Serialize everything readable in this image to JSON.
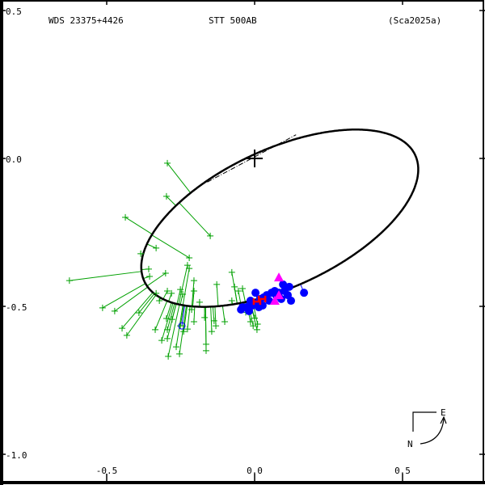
{
  "header": {
    "wds_id": "WDS 23375+4426",
    "pair_name": "STT 500AB",
    "orbit_ref": "(Sca2025a)"
  },
  "compass": {
    "north": "N",
    "east": "E"
  },
  "colors": {
    "orbit": "#000000",
    "micrometer": "#00a000",
    "speckle": "#0000ff",
    "interferometric": "#ff00ff",
    "recent": "#ff0000"
  },
  "chart_data": {
    "type": "scatter",
    "title": "WDS 23375+4426 STT 500AB (Sca2025a)",
    "xlabel": "",
    "ylabel": "",
    "xlim": [
      -0.86,
      0.78
    ],
    "ylim": [
      -1.1,
      0.535
    ],
    "x_ticks": [
      {
        "v": -0.5,
        "label": "-0.5"
      },
      {
        "v": 0.0,
        "label": "0.0"
      },
      {
        "v": 0.5,
        "label": "0.5"
      }
    ],
    "y_ticks": [
      {
        "v": 0.5,
        "label": "0.5"
      },
      {
        "v": 0.0,
        "label": "0.0"
      },
      {
        "v": -0.5,
        "label": "-0.5"
      },
      {
        "v": -1.0,
        "label": "-1.0"
      }
    ],
    "primary": [
      0,
      0
    ],
    "orbit_ellipse": {
      "center": [
        0.085,
        -0.202
      ],
      "semi_major": 0.505,
      "semi_minor": 0.232,
      "angle_deg": 25
    },
    "line_of_nodes": [
      [
        -0.16,
        -0.08
      ],
      [
        0.14,
        0.08
      ]
    ],
    "series": [
      {
        "name": "micrometer",
        "marker": "plus",
        "points": [
          [
            -0.295,
            -0.016
          ],
          [
            -0.298,
            -0.128
          ],
          [
            -0.437,
            -0.199
          ],
          [
            -0.15,
            -0.262
          ],
          [
            -0.333,
            -0.303
          ],
          [
            -0.385,
            -0.322
          ],
          [
            -0.221,
            -0.336
          ],
          [
            -0.227,
            -0.361
          ],
          [
            -0.221,
            -0.372
          ],
          [
            -0.358,
            -0.374
          ],
          [
            -0.626,
            -0.413
          ],
          [
            -0.301,
            -0.388
          ],
          [
            -0.355,
            -0.399
          ],
          [
            -0.077,
            -0.385
          ],
          [
            -0.205,
            -0.413
          ],
          [
            -0.128,
            -0.426
          ],
          [
            -0.514,
            -0.505
          ],
          [
            -0.473,
            -0.516
          ],
          [
            -0.448,
            -0.574
          ],
          [
            -0.432,
            -0.598
          ],
          [
            -0.391,
            -0.522
          ],
          [
            -0.336,
            -0.579
          ],
          [
            -0.314,
            -0.615
          ],
          [
            -0.295,
            -0.609
          ],
          [
            -0.295,
            -0.579
          ],
          [
            -0.298,
            -0.541
          ],
          [
            -0.279,
            -0.544
          ],
          [
            -0.251,
            -0.566
          ],
          [
            -0.24,
            -0.585
          ],
          [
            -0.265,
            -0.637
          ],
          [
            -0.292,
            -0.669
          ],
          [
            -0.254,
            -0.661
          ],
          [
            -0.295,
            -0.448
          ],
          [
            -0.281,
            -0.456
          ],
          [
            -0.251,
            -0.443
          ],
          [
            -0.243,
            -0.459
          ],
          [
            -0.205,
            -0.448
          ],
          [
            -0.186,
            -0.486
          ],
          [
            -0.213,
            -0.511
          ],
          [
            -0.169,
            -0.538
          ],
          [
            -0.137,
            -0.549
          ],
          [
            -0.131,
            -0.566
          ],
          [
            -0.145,
            -0.585
          ],
          [
            -0.164,
            -0.628
          ],
          [
            -0.164,
            -0.65
          ],
          [
            -0.101,
            -0.552
          ],
          [
            -0.077,
            -0.481
          ],
          [
            -0.068,
            -0.434
          ],
          [
            -0.055,
            -0.448
          ],
          [
            -0.041,
            -0.44
          ],
          [
            -0.014,
            -0.552
          ],
          [
            0.008,
            -0.579
          ],
          [
            -0.005,
            -0.566
          ],
          [
            -0.205,
            -0.552
          ],
          [
            -0.227,
            -0.577
          ],
          [
            -0.333,
            -0.456
          ],
          [
            -0.322,
            -0.481
          ],
          [
            -0.041,
            -0.5
          ],
          [
            -0.03,
            -0.52
          ],
          [
            0.0,
            -0.54
          ],
          [
            0.01,
            -0.56
          ]
        ]
      },
      {
        "name": "speckle",
        "marker": "filled-circle",
        "points": [
          [
            -0.046,
            -0.511
          ],
          [
            -0.027,
            -0.503
          ],
          [
            -0.008,
            -0.497
          ],
          [
            0.008,
            -0.489
          ],
          [
            0.019,
            -0.475
          ],
          [
            0.03,
            -0.47
          ],
          [
            0.041,
            -0.462
          ],
          [
            0.057,
            -0.454
          ],
          [
            0.068,
            -0.448
          ],
          [
            0.082,
            -0.454
          ],
          [
            0.096,
            -0.426
          ],
          [
            0.101,
            -0.448
          ],
          [
            0.112,
            -0.462
          ],
          [
            0.123,
            -0.481
          ],
          [
            0.167,
            -0.454
          ],
          [
            0.003,
            -0.454
          ],
          [
            0.027,
            -0.497
          ],
          [
            -0.019,
            -0.516
          ],
          [
            0.09,
            -0.475
          ],
          [
            -0.041,
            -0.503
          ],
          [
            0.049,
            -0.481
          ],
          [
            0.074,
            -0.464
          ],
          [
            0.117,
            -0.434
          ],
          [
            0.014,
            -0.503
          ],
          [
            -0.014,
            -0.481
          ]
        ]
      },
      {
        "name": "speckle-open",
        "marker": "open-circle",
        "points": [
          [
            -0.246,
            -0.566
          ]
        ]
      },
      {
        "name": "interferometric",
        "marker": "triangle",
        "points": [
          [
            0.082,
            -0.402
          ],
          [
            0.082,
            -0.462
          ],
          [
            0.068,
            -0.481
          ]
        ]
      },
      {
        "name": "recent",
        "marker": "H",
        "points": [
          [
            0.008,
            -0.484
          ],
          [
            0.025,
            -0.475
          ]
        ]
      }
    ]
  }
}
